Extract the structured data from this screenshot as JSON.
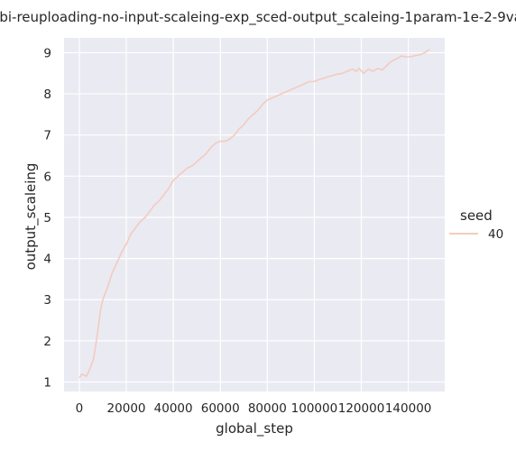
{
  "chart_data": {
    "type": "line",
    "title": "rbi-reuploading-no-input-scaleing-exp_sced-output_scaleing-1param-1e-2-9va",
    "xlabel": "global_step",
    "ylabel": "output_scaleing",
    "xlim": [
      -6500,
      155500
    ],
    "ylim": [
      0.77,
      9.36
    ],
    "x_ticks": [
      0,
      20000,
      40000,
      60000,
      80000,
      100000,
      120000,
      140000
    ],
    "y_ticks": [
      1,
      2,
      3,
      4,
      5,
      6,
      7,
      8,
      9
    ],
    "grid": true,
    "legend": {
      "title": "seed",
      "placement": "right"
    },
    "series": [
      {
        "name": "40",
        "color": "#f3cbbe",
        "points": [
          [
            0,
            1.1
          ],
          [
            1000,
            1.19
          ],
          [
            3000,
            1.14
          ],
          [
            4000,
            1.25
          ],
          [
            6000,
            1.55
          ],
          [
            7000,
            1.9
          ],
          [
            8000,
            2.3
          ],
          [
            9000,
            2.75
          ],
          [
            10000,
            3.0
          ],
          [
            12000,
            3.3
          ],
          [
            14000,
            3.65
          ],
          [
            16000,
            3.9
          ],
          [
            18000,
            4.15
          ],
          [
            20000,
            4.35
          ],
          [
            22000,
            4.6
          ],
          [
            24000,
            4.75
          ],
          [
            26000,
            4.9
          ],
          [
            28000,
            5.0
          ],
          [
            30000,
            5.15
          ],
          [
            32000,
            5.3
          ],
          [
            34000,
            5.4
          ],
          [
            36000,
            5.55
          ],
          [
            38000,
            5.7
          ],
          [
            40000,
            5.9
          ],
          [
            42000,
            6.0
          ],
          [
            44000,
            6.1
          ],
          [
            46000,
            6.2
          ],
          [
            48000,
            6.25
          ],
          [
            50000,
            6.35
          ],
          [
            52000,
            6.45
          ],
          [
            54000,
            6.55
          ],
          [
            56000,
            6.7
          ],
          [
            58000,
            6.8
          ],
          [
            60000,
            6.85
          ],
          [
            62000,
            6.85
          ],
          [
            64000,
            6.9
          ],
          [
            66000,
            7.0
          ],
          [
            68000,
            7.15
          ],
          [
            70000,
            7.25
          ],
          [
            72000,
            7.4
          ],
          [
            74000,
            7.5
          ],
          [
            76000,
            7.6
          ],
          [
            78000,
            7.75
          ],
          [
            80000,
            7.85
          ],
          [
            82000,
            7.9
          ],
          [
            84000,
            7.95
          ],
          [
            86000,
            8.0
          ],
          [
            88000,
            8.05
          ],
          [
            90000,
            8.1
          ],
          [
            92000,
            8.15
          ],
          [
            94000,
            8.2
          ],
          [
            96000,
            8.25
          ],
          [
            98000,
            8.3
          ],
          [
            100000,
            8.3
          ],
          [
            102000,
            8.35
          ],
          [
            104000,
            8.38
          ],
          [
            106000,
            8.42
          ],
          [
            108000,
            8.45
          ],
          [
            110000,
            8.48
          ],
          [
            112000,
            8.5
          ],
          [
            114000,
            8.55
          ],
          [
            116000,
            8.6
          ],
          [
            118000,
            8.55
          ],
          [
            119000,
            8.62
          ],
          [
            121000,
            8.5
          ],
          [
            123000,
            8.6
          ],
          [
            125000,
            8.55
          ],
          [
            127000,
            8.62
          ],
          [
            129000,
            8.58
          ],
          [
            131000,
            8.7
          ],
          [
            133000,
            8.8
          ],
          [
            135000,
            8.85
          ],
          [
            137000,
            8.92
          ],
          [
            139000,
            8.9
          ],
          [
            141000,
            8.9
          ],
          [
            143000,
            8.93
          ],
          [
            145000,
            8.95
          ],
          [
            147000,
            9.0
          ],
          [
            149000,
            9.08
          ]
        ]
      }
    ]
  }
}
